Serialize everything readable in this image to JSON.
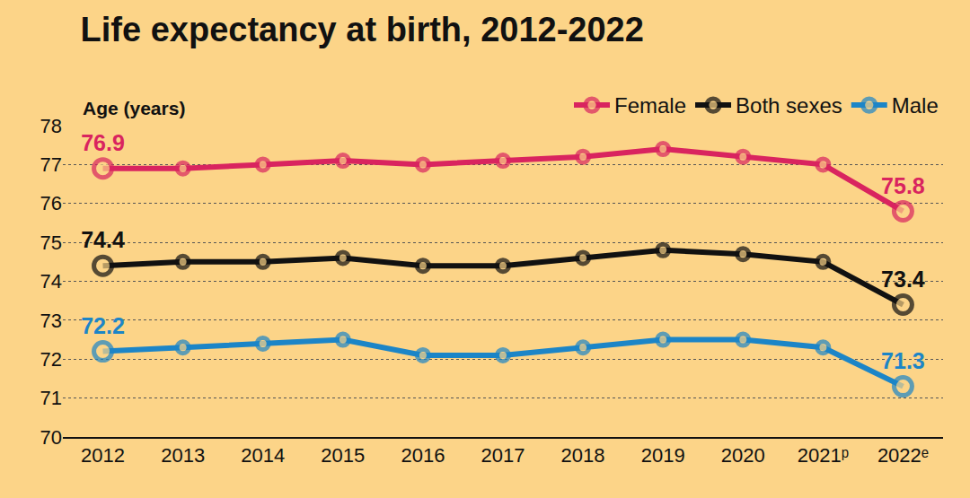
{
  "chart_data": {
    "type": "line",
    "title": "Life expectancy at birth, 2012-2022",
    "y_label": "Age (years)",
    "categories": [
      "2012",
      "2013",
      "2014",
      "2015",
      "2016",
      "2017",
      "2018",
      "2019",
      "2020",
      "2021ᵖ",
      "2022ᵉ"
    ],
    "series": [
      {
        "name": "Female",
        "color": "#D9245F",
        "values": [
          76.9,
          76.9,
          77.0,
          77.1,
          77.0,
          77.1,
          77.2,
          77.4,
          77.2,
          77.0,
          75.8
        ],
        "value_labels": [
          "76.9",
          null,
          null,
          null,
          null,
          null,
          null,
          null,
          null,
          null,
          "75.8"
        ]
      },
      {
        "name": "Both sexes",
        "color": "#111111",
        "values": [
          74.4,
          74.5,
          74.5,
          74.6,
          74.4,
          74.4,
          74.6,
          74.8,
          74.7,
          74.5,
          73.4
        ],
        "value_labels": [
          "74.4",
          null,
          null,
          null,
          null,
          null,
          null,
          null,
          null,
          null,
          "73.4"
        ]
      },
      {
        "name": "Male",
        "color": "#1C85C7",
        "values": [
          72.2,
          72.3,
          72.4,
          72.5,
          72.1,
          72.1,
          72.3,
          72.5,
          72.5,
          72.3,
          71.3
        ],
        "value_labels": [
          "72.2",
          null,
          null,
          null,
          null,
          null,
          null,
          null,
          null,
          null,
          "71.3"
        ]
      }
    ],
    "ylim": [
      70,
      78
    ],
    "yticks": [
      70,
      71,
      72,
      73,
      74,
      75,
      76,
      77,
      78
    ],
    "grid": true,
    "legend": "top right",
    "marker": "circle"
  }
}
